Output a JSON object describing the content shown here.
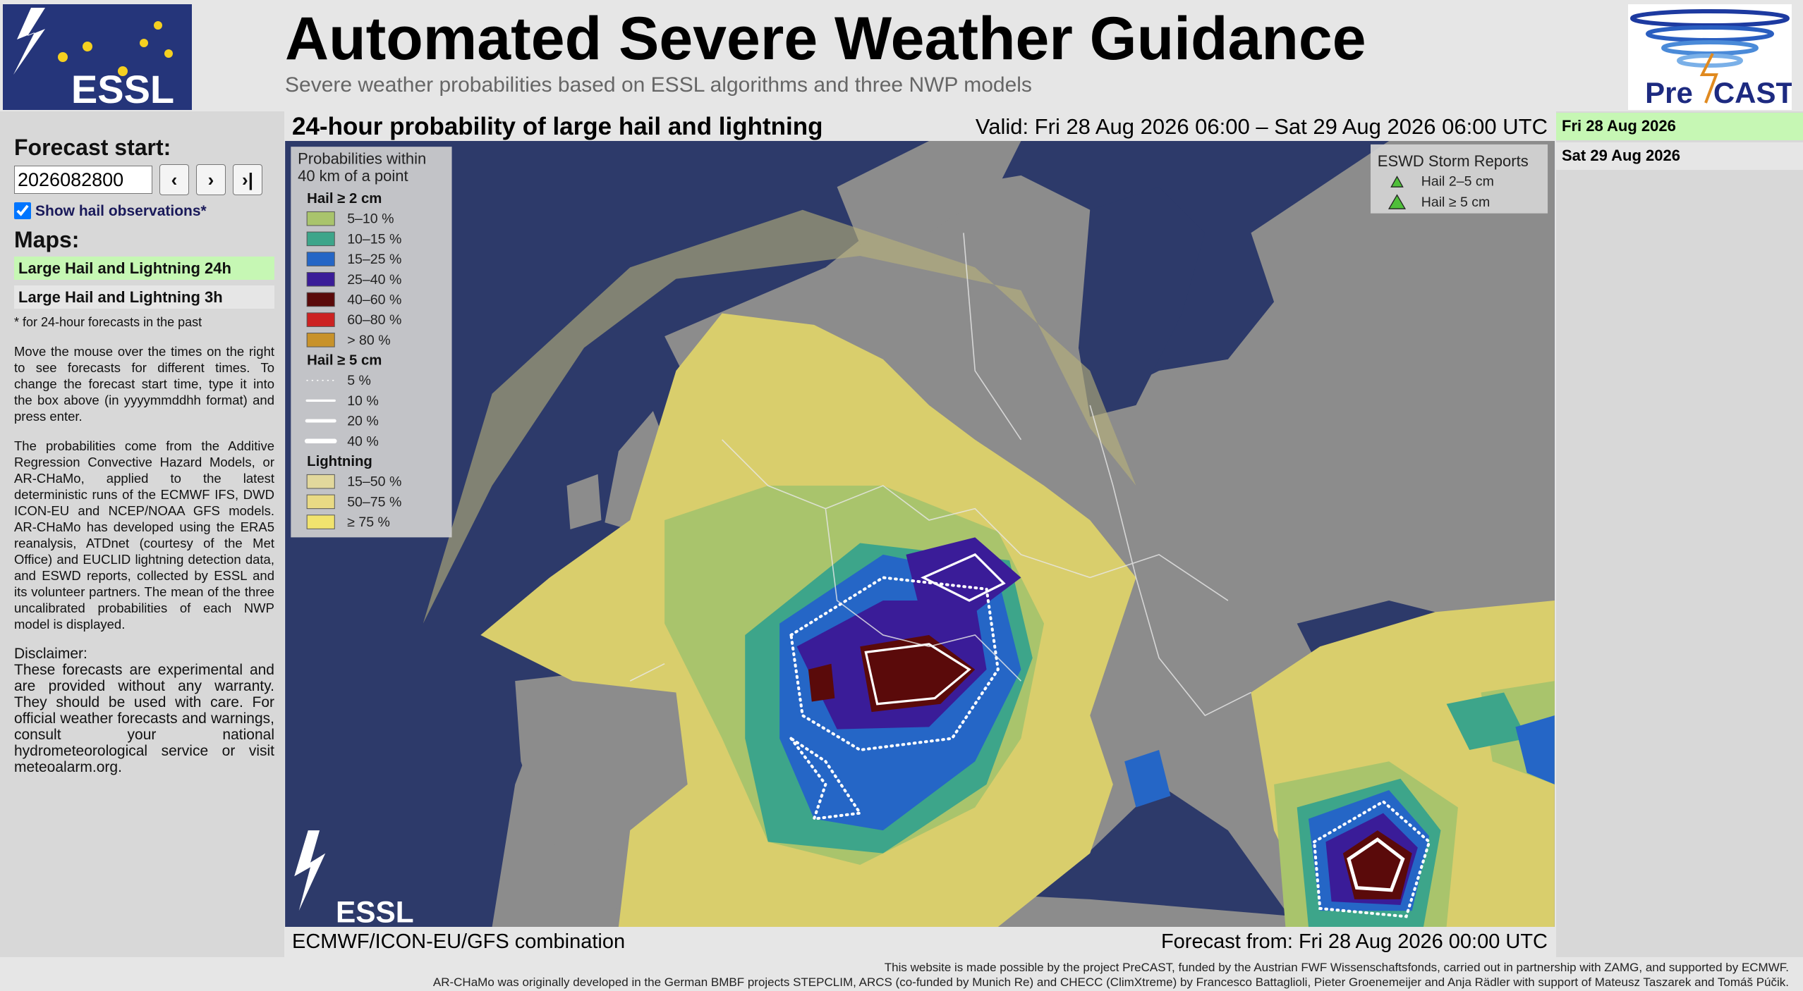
{
  "header": {
    "title": "Automated Severe Weather Guidance",
    "subtitle": {
      "before": "Severe weather probabilities based on ",
      "link": "ESSL",
      "after": " algorithms and three NWP models"
    },
    "logo_left": "ESSL",
    "logo_right": {
      "pre": "Pre",
      "cast": "CAST"
    }
  },
  "sidebar": {
    "forecast_label": "Forecast start:",
    "input_value": "2026082800",
    "buttons": [
      "‹",
      "›",
      "›|"
    ],
    "checkbox_label": "Show hail observations*",
    "maps_heading": "Maps:",
    "maps": [
      "Large Hail and Lightning 24h",
      "Large Hail and Lightning 3h"
    ],
    "note": "* for 24-hour forecasts in the past",
    "para1": "Move the mouse over the times on the right to see forecasts for different times. To change the forecast start time, type it into the box above (in yyyymmddhh format) and press enter.",
    "para2": {
      "before": "The probabilities come from the Additive Regression Convective Hazard Models, or AR-CHaMo, applied to the latest deterministic runs of the ECMWF IFS, DWD ICON-EU and NCEP/NOAA GFS models. AR-CHaMo has developed using the ERA5 reanalysis, ATDnet (courtesy of the Met Office) and EUCLID lightning detection data, and ",
      "link": "ESWD reports",
      "after": ", collected by ESSL and its volunteer partners. The mean of the three uncalibrated probabilities of each NWP model is displayed."
    },
    "disclaimer_heading": "Disclaimer:",
    "disclaimer": {
      "before": "These forecasts are experimental and are provided without any warranty. They should be used with care. For official weather forecasts and warnings, consult your national hydrometeorological service or visit ",
      "link": "meteoalarm.org",
      "after": "."
    }
  },
  "map": {
    "title": "24-hour probability of large hail and lightning",
    "valid": "Valid: Fri 28 Aug 2026 06:00 – Sat 29 Aug 2026 06:00 UTC",
    "model": "ECMWF/ICON-EU/GFS combination",
    "forecast_from": "Forecast from: Fri 28 Aug 2026 00:00 UTC",
    "watermark": "ESSL",
    "legend": {
      "title": [
        "Probabilities within",
        "40 km of a point"
      ],
      "groups": [
        {
          "heading": "Hail ≥ 2 cm",
          "items": [
            {
              "label": "5–10 %",
              "color": "#a9c46c"
            },
            {
              "label": "10–15 %",
              "color": "#3da58a"
            },
            {
              "label": "15–25 %",
              "color": "#2566c6"
            },
            {
              "label": "25–40 %",
              "color": "#3a1c98"
            },
            {
              "label": "40–60 %",
              "color": "#5a0a0a"
            },
            {
              "label": "60–80 %",
              "color": "#cc2222"
            },
            {
              "label": "> 80 %",
              "color": "#c8922a"
            }
          ]
        },
        {
          "heading": "Hail ≥ 5 cm",
          "items": [
            {
              "label": "5 %",
              "line": "dotted"
            },
            {
              "label": "10 %",
              "line": "solid"
            },
            {
              "label": "20 %",
              "line": "solid"
            },
            {
              "label": "40 %",
              "line": "solid"
            }
          ]
        },
        {
          "heading": "Lightning",
          "items": [
            {
              "label": "15–50 %",
              "color": "#e2d89c"
            },
            {
              "label": "50–75 %",
              "color": "#e9da84"
            },
            {
              "label": "≥ 75 %",
              "color": "#f1e36e"
            }
          ]
        }
      ]
    },
    "storm_reports": {
      "title": "ESWD Storm Reports",
      "items": [
        "Hail 2–5 cm",
        "Hail ≥ 5 cm"
      ]
    }
  },
  "dates": [
    "Fri 28 Aug 2026",
    "Sat 29 Aug 2026"
  ],
  "footer": {
    "line1": {
      "a": "This website is made possible by the project PreCAST, funded by the ",
      "b": "Austrian FWF Wissenschaftsfonds",
      "c": ", carried out in partnership with ",
      "d": "ZAMG",
      "e": ", and supported by ",
      "f": "ECMWF",
      "g": "."
    },
    "line2": "AR-CHaMo was originally developed in the German BMBF projects STEPCLIM, ARCS (co-funded by Munich Re) and CHECC (ClimXtreme) by Francesco Battaglioli, Pieter Groenemeijer and Anja Rädler with support of Mateusz Taszarek and Tomáš Púčik."
  }
}
